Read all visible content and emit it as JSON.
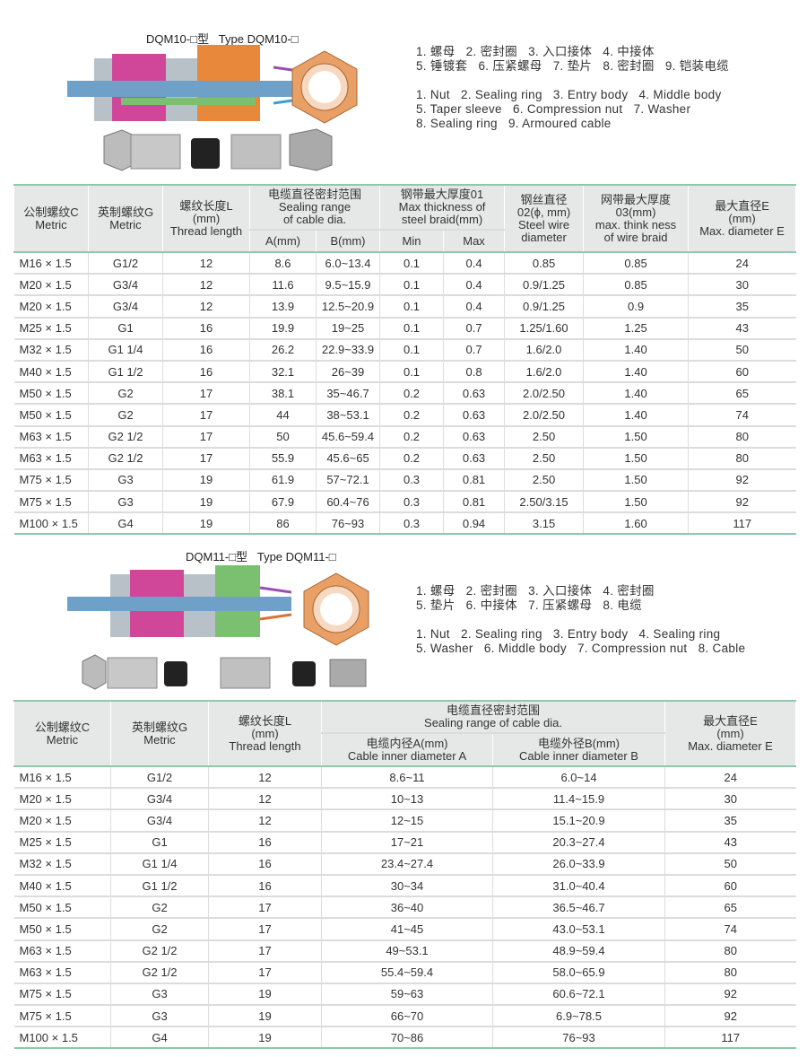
{
  "section1": {
    "title": "DQM10-□型   Type DQM10-□",
    "legend_cn": [
      "1. 螺母   2. 密封圈   3. 入口接体   4. 中接体",
      "5. 锤镀套   6. 压紧螺母   7. 垫片   8. 密封圈   9. 铠装电缆"
    ],
    "legend_en": [
      "1. Nut   2. Sealing ring   3. Entry body   4. Middle body",
      "5. Taper sleeve   6. Compression nut   7. Washer",
      "8. Sealing ring   9. Armoured cable"
    ],
    "table": {
      "headers": {
        "c": "公制螺纹C\nMetric",
        "g": "英制螺纹G\nMetric",
        "l": "螺纹长度L\n(mm)\nThread length",
        "seal": "电缆直径密封范围\nSealing range\nof cable dia.",
        "a": "A(mm)",
        "b": "B(mm)",
        "braid": "钢带最大厚度01\nMax thickness of\nsteel braid(mm)",
        "min": "Min",
        "max": "Max",
        "wire": "钢丝直径\n02(ϕ, mm)\nSteel wire\ndiameter",
        "wb": "网带最大厚度\n03(mm)\nmax. think ness\nof wire braid",
        "e": "最大直径E\n(mm)\nMax. diameter E"
      },
      "rows": [
        [
          "M16 × 1.5",
          "G1/2",
          "12",
          "8.6",
          "6.0~13.4",
          "0.1",
          "0.4",
          "0.85",
          "0.85",
          "24"
        ],
        [
          "M20 × 1.5",
          "G3/4",
          "12",
          "11.6",
          "9.5~15.9",
          "0.1",
          "0.4",
          "0.9/1.25",
          "0.85",
          "30"
        ],
        [
          "M20 × 1.5",
          "G3/4",
          "12",
          "13.9",
          "12.5~20.9",
          "0.1",
          "0.4",
          "0.9/1.25",
          "0.9",
          "35"
        ],
        [
          "M25 × 1.5",
          "G1",
          "16",
          "19.9",
          "19~25",
          "0.1",
          "0.7",
          "1.25/1.60",
          "1.25",
          "43"
        ],
        [
          "M32 × 1.5",
          "G1 1/4",
          "16",
          "26.2",
          "22.9~33.9",
          "0.1",
          "0.7",
          "1.6/2.0",
          "1.40",
          "50"
        ],
        [
          "M40 × 1.5",
          "G1 1/2",
          "16",
          "32.1",
          "26~39",
          "0.1",
          "0.8",
          "1.6/2.0",
          "1.40",
          "60"
        ],
        [
          "M50 × 1.5",
          "G2",
          "17",
          "38.1",
          "35~46.7",
          "0.2",
          "0.63",
          "2.0/2.50",
          "1.40",
          "65"
        ],
        [
          "M50 × 1.5",
          "G2",
          "17",
          "44",
          "38~53.1",
          "0.2",
          "0.63",
          "2.0/2.50",
          "1.40",
          "74"
        ],
        [
          "M63 × 1.5",
          "G2 1/2",
          "17",
          "50",
          "45.6~59.4",
          "0.2",
          "0.63",
          "2.50",
          "1.50",
          "80"
        ],
        [
          "M63 × 1.5",
          "G2 1/2",
          "17",
          "55.9",
          "45.6~65",
          "0.2",
          "0.63",
          "2.50",
          "1.50",
          "80"
        ],
        [
          "M75 × 1.5",
          "G3",
          "19",
          "61.9",
          "57~72.1",
          "0.3",
          "0.81",
          "2.50",
          "1.50",
          "92"
        ],
        [
          "M75 × 1.5",
          "G3",
          "19",
          "67.9",
          "60.4~76",
          "0.3",
          "0.81",
          "2.50/3.15",
          "1.50",
          "92"
        ],
        [
          "M100 × 1.5",
          "G4",
          "19",
          "86",
          "76~93",
          "0.3",
          "0.94",
          "3.15",
          "1.60",
          "117"
        ]
      ]
    }
  },
  "section2": {
    "title": "DQM11-□型   Type DQM11-□",
    "legend_cn": [
      "1. 螺母   2. 密封圈   3. 入口接体   4. 密封圈",
      "5. 垫片   6. 中接体   7. 压紧螺母   8. 电缆"
    ],
    "legend_en": [
      "1. Nut   2. Sealing ring   3. Entry body   4. Sealing ring",
      "5. Washer   6. Middle body   7. Compression nut   8. Cable"
    ],
    "table": {
      "headers": {
        "c": "公制螺纹C\nMetric",
        "g": "英制螺纹G\nMetric",
        "l": "螺纹长度L\n(mm)\nThread length",
        "seal": "电缆直径密封范围\nSealing range of cable dia.",
        "a": "电缆内径A(mm)\nCable inner diameter A",
        "b": "电缆外径B(mm)\nCable inner diameter B",
        "e": "最大直径E\n(mm)\nMax. diameter E"
      },
      "rows": [
        [
          "M16 × 1.5",
          "G1/2",
          "12",
          "8.6~11",
          "6.0~14",
          "24"
        ],
        [
          "M20 × 1.5",
          "G3/4",
          "12",
          "10~13",
          "11.4~15.9",
          "30"
        ],
        [
          "M20 × 1.5",
          "G3/4",
          "12",
          "12~15",
          "15.1~20.9",
          "35"
        ],
        [
          "M25 × 1.5",
          "G1",
          "16",
          "17~21",
          "20.3~27.4",
          "43"
        ],
        [
          "M32 × 1.5",
          "G1 1/4",
          "16",
          "23.4~27.4",
          "26.0~33.9",
          "50"
        ],
        [
          "M40 × 1.5",
          "G1 1/2",
          "16",
          "30~34",
          "31.0~40.4",
          "60"
        ],
        [
          "M50 × 1.5",
          "G2",
          "17",
          "36~40",
          "36.5~46.7",
          "65"
        ],
        [
          "M50 × 1.5",
          "G2",
          "17",
          "41~45",
          "43.0~53.1",
          "74"
        ],
        [
          "M63 × 1.5",
          "G2 1/2",
          "17",
          "49~53.1",
          "48.9~59.4",
          "80"
        ],
        [
          "M63 × 1.5",
          "G2 1/2",
          "17",
          "55.4~59.4",
          "58.0~65.9",
          "80"
        ],
        [
          "M75 × 1.5",
          "G3",
          "19",
          "59~63",
          "60.6~72.1",
          "92"
        ],
        [
          "M75 × 1.5",
          "G3",
          "19",
          "66~70",
          "6.9~78.5",
          "92"
        ],
        [
          "M100 × 1.5",
          "G4",
          "19",
          "70~86",
          "76~93",
          "117"
        ]
      ]
    }
  },
  "colors": {
    "accent_line": "#8fc8ab",
    "header_bg": "#e6e8e8"
  }
}
